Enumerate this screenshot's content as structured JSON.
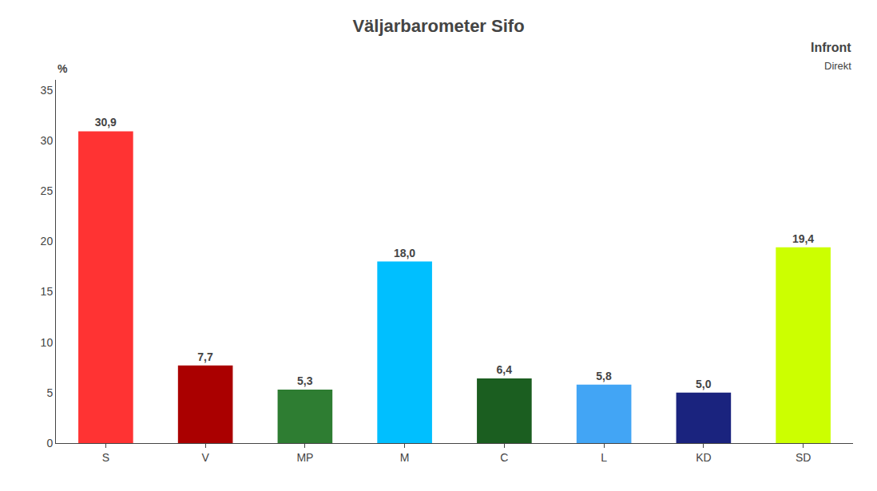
{
  "chart_data": {
    "type": "bar",
    "title": "Väljarbarometer Sifo",
    "categories": [
      "S",
      "V",
      "MP",
      "M",
      "C",
      "L",
      "KD",
      "SD"
    ],
    "values": [
      30.9,
      7.7,
      5.3,
      18.0,
      6.4,
      5.8,
      5.0,
      19.4
    ],
    "value_labels": [
      "30,9",
      "7,7",
      "5,3",
      "18,0",
      "6,4",
      "5,8",
      "5,0",
      "19,4"
    ],
    "colors": [
      "#FF3333",
      "#AA0000",
      "#2E7D32",
      "#00BFFF",
      "#1B5E20",
      "#42A5F5",
      "#1A237E",
      "#CCFF00"
    ],
    "ylim": [
      0,
      36
    ],
    "yticks": [
      0,
      5,
      10,
      15,
      20,
      25,
      30,
      35
    ],
    "grid": false,
    "data_labels": true,
    "annotations": [
      "%",
      "Infront",
      "Direkt"
    ]
  }
}
